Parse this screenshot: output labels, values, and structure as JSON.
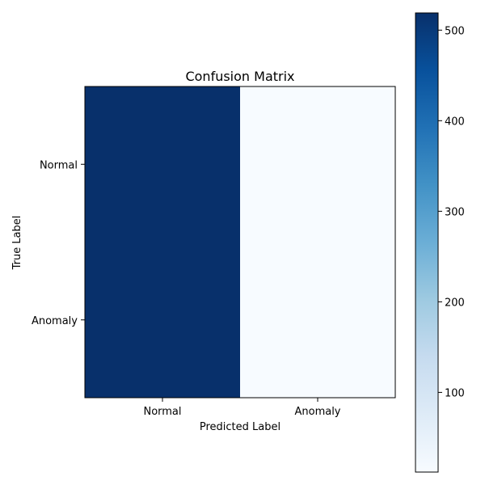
{
  "chart_data": {
    "type": "heatmap",
    "title": "Confusion Matrix",
    "xlabel": "Predicted Label",
    "ylabel": "True Label",
    "x_categories": [
      "Normal",
      "Anomaly"
    ],
    "y_categories": [
      "Normal",
      "Anomaly"
    ],
    "values": [
      [
        519,
        12
      ],
      [
        519,
        12
      ]
    ],
    "colormap": "Blues",
    "colorbar": {
      "range": [
        12,
        519
      ],
      "ticks": [
        100,
        200,
        300,
        400,
        500
      ]
    }
  }
}
